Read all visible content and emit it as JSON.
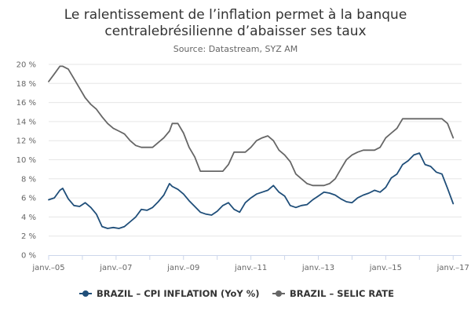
{
  "chart_data": {
    "type": "line",
    "title_lines": [
      "Le ralentissement de l’inflation permet à la banque",
      "centralebrésilienne d’abaisser ses taux"
    ],
    "subtitle": "Source: Datastream, SYZ AM",
    "xlabel": "",
    "ylabel": "",
    "x_ticks": [
      "janv.–05",
      "janv.–07",
      "janv.–09",
      "janv.–11",
      "janv.–13",
      "janv.–15",
      "janv.–17"
    ],
    "y_ticks": [
      "0 %",
      "2 %",
      "4 %",
      "6 %",
      "8 %",
      "10 %",
      "12 %",
      "14 %",
      "16 %",
      "18 %",
      "20 %"
    ],
    "ylim": [
      0,
      20
    ],
    "xlim": [
      "2005-01",
      "2017-04"
    ],
    "grid": "horizontal",
    "legend_position": "bottom",
    "colors": {
      "cpi": "#1f4e79",
      "selic": "#666666",
      "grid": "#e6e6e6",
      "axis": "#ccd6eb"
    },
    "series": [
      {
        "name": "BRAZIL – CPI INFLATION (YoY %)",
        "color": "#1f4e79",
        "points": [
          [
            "2005-01",
            5.8
          ],
          [
            "2005-03",
            6.0
          ],
          [
            "2005-05",
            6.8
          ],
          [
            "2005-06",
            7.0
          ],
          [
            "2005-08",
            5.9
          ],
          [
            "2005-10",
            5.2
          ],
          [
            "2005-12",
            5.1
          ],
          [
            "2006-02",
            5.5
          ],
          [
            "2006-04",
            5.0
          ],
          [
            "2006-06",
            4.3
          ],
          [
            "2006-08",
            3.0
          ],
          [
            "2006-10",
            2.8
          ],
          [
            "2006-12",
            2.9
          ],
          [
            "2007-02",
            2.8
          ],
          [
            "2007-04",
            3.0
          ],
          [
            "2007-06",
            3.5
          ],
          [
            "2007-08",
            4.0
          ],
          [
            "2007-10",
            4.8
          ],
          [
            "2007-12",
            4.7
          ],
          [
            "2008-02",
            5.0
          ],
          [
            "2008-04",
            5.6
          ],
          [
            "2008-06",
            6.3
          ],
          [
            "2008-08",
            7.5
          ],
          [
            "2008-09",
            7.2
          ],
          [
            "2008-11",
            6.9
          ],
          [
            "2009-01",
            6.4
          ],
          [
            "2009-03",
            5.7
          ],
          [
            "2009-05",
            5.1
          ],
          [
            "2009-07",
            4.5
          ],
          [
            "2009-09",
            4.3
          ],
          [
            "2009-11",
            4.2
          ],
          [
            "2010-01",
            4.6
          ],
          [
            "2010-03",
            5.2
          ],
          [
            "2010-05",
            5.5
          ],
          [
            "2010-07",
            4.8
          ],
          [
            "2010-09",
            4.5
          ],
          [
            "2010-11",
            5.5
          ],
          [
            "2011-01",
            6.0
          ],
          [
            "2011-03",
            6.4
          ],
          [
            "2011-05",
            6.6
          ],
          [
            "2011-07",
            6.8
          ],
          [
            "2011-09",
            7.3
          ],
          [
            "2011-11",
            6.6
          ],
          [
            "2012-01",
            6.2
          ],
          [
            "2012-03",
            5.2
          ],
          [
            "2012-05",
            5.0
          ],
          [
            "2012-07",
            5.2
          ],
          [
            "2012-09",
            5.3
          ],
          [
            "2012-11",
            5.8
          ],
          [
            "2013-01",
            6.2
          ],
          [
            "2013-03",
            6.6
          ],
          [
            "2013-05",
            6.5
          ],
          [
            "2013-07",
            6.3
          ],
          [
            "2013-09",
            5.9
          ],
          [
            "2013-11",
            5.6
          ],
          [
            "2014-01",
            5.5
          ],
          [
            "2014-03",
            6.0
          ],
          [
            "2014-05",
            6.3
          ],
          [
            "2014-07",
            6.5
          ],
          [
            "2014-09",
            6.8
          ],
          [
            "2014-11",
            6.6
          ],
          [
            "2015-01",
            7.1
          ],
          [
            "2015-03",
            8.1
          ],
          [
            "2015-05",
            8.5
          ],
          [
            "2015-07",
            9.5
          ],
          [
            "2015-09",
            9.9
          ],
          [
            "2015-11",
            10.5
          ],
          [
            "2016-01",
            10.7
          ],
          [
            "2016-03",
            9.5
          ],
          [
            "2016-05",
            9.3
          ],
          [
            "2016-07",
            8.7
          ],
          [
            "2016-09",
            8.5
          ],
          [
            "2016-11",
            7.0
          ],
          [
            "2017-01",
            5.4
          ]
        ]
      },
      {
        "name": "BRAZIL – SELIC RATE",
        "color": "#666666",
        "points": [
          [
            "2005-01",
            18.2
          ],
          [
            "2005-03",
            19.0
          ],
          [
            "2005-05",
            19.8
          ],
          [
            "2005-06",
            19.8
          ],
          [
            "2005-08",
            19.5
          ],
          [
            "2005-10",
            18.5
          ],
          [
            "2005-12",
            17.5
          ],
          [
            "2006-02",
            16.5
          ],
          [
            "2006-04",
            15.8
          ],
          [
            "2006-06",
            15.3
          ],
          [
            "2006-08",
            14.5
          ],
          [
            "2006-10",
            13.8
          ],
          [
            "2006-12",
            13.3
          ],
          [
            "2007-02",
            13.0
          ],
          [
            "2007-04",
            12.7
          ],
          [
            "2007-06",
            12.0
          ],
          [
            "2007-08",
            11.5
          ],
          [
            "2007-10",
            11.3
          ],
          [
            "2007-12",
            11.3
          ],
          [
            "2008-02",
            11.3
          ],
          [
            "2008-04",
            11.8
          ],
          [
            "2008-06",
            12.3
          ],
          [
            "2008-08",
            13.0
          ],
          [
            "2008-09",
            13.8
          ],
          [
            "2008-11",
            13.8
          ],
          [
            "2009-01",
            12.8
          ],
          [
            "2009-03",
            11.3
          ],
          [
            "2009-05",
            10.3
          ],
          [
            "2009-07",
            8.8
          ],
          [
            "2009-09",
            8.8
          ],
          [
            "2009-11",
            8.8
          ],
          [
            "2010-01",
            8.8
          ],
          [
            "2010-03",
            8.8
          ],
          [
            "2010-05",
            9.5
          ],
          [
            "2010-07",
            10.8
          ],
          [
            "2010-09",
            10.8
          ],
          [
            "2010-11",
            10.8
          ],
          [
            "2011-01",
            11.3
          ],
          [
            "2011-03",
            12.0
          ],
          [
            "2011-05",
            12.3
          ],
          [
            "2011-07",
            12.5
          ],
          [
            "2011-09",
            12.0
          ],
          [
            "2011-11",
            11.0
          ],
          [
            "2012-01",
            10.5
          ],
          [
            "2012-03",
            9.8
          ],
          [
            "2012-05",
            8.5
          ],
          [
            "2012-07",
            8.0
          ],
          [
            "2012-09",
            7.5
          ],
          [
            "2012-11",
            7.3
          ],
          [
            "2013-01",
            7.3
          ],
          [
            "2013-03",
            7.3
          ],
          [
            "2013-05",
            7.5
          ],
          [
            "2013-07",
            8.0
          ],
          [
            "2013-09",
            9.0
          ],
          [
            "2013-11",
            10.0
          ],
          [
            "2014-01",
            10.5
          ],
          [
            "2014-03",
            10.8
          ],
          [
            "2014-05",
            11.0
          ],
          [
            "2014-07",
            11.0
          ],
          [
            "2014-09",
            11.0
          ],
          [
            "2014-11",
            11.3
          ],
          [
            "2015-01",
            12.3
          ],
          [
            "2015-03",
            12.8
          ],
          [
            "2015-05",
            13.3
          ],
          [
            "2015-07",
            14.3
          ],
          [
            "2015-09",
            14.3
          ],
          [
            "2015-11",
            14.3
          ],
          [
            "2016-01",
            14.3
          ],
          [
            "2016-03",
            14.3
          ],
          [
            "2016-05",
            14.3
          ],
          [
            "2016-07",
            14.3
          ],
          [
            "2016-09",
            14.3
          ],
          [
            "2016-11",
            13.8
          ],
          [
            "2017-01",
            12.3
          ]
        ]
      }
    ]
  }
}
